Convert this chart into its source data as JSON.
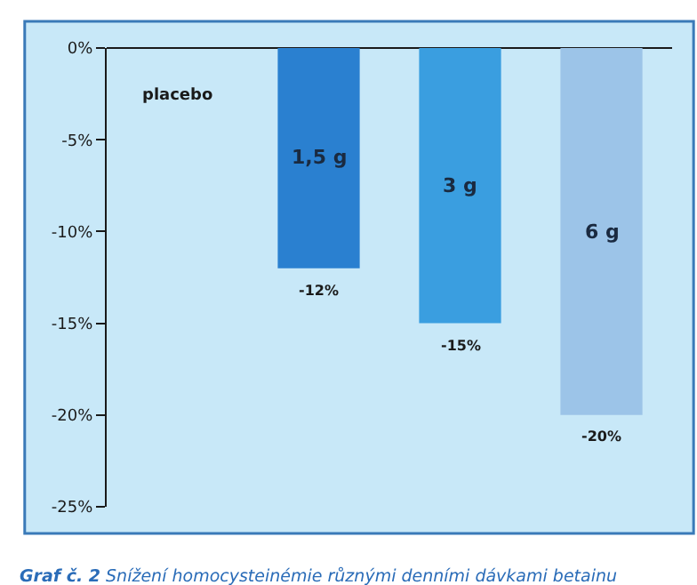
{
  "chart_data": {
    "type": "bar",
    "title": "Graf č. 2",
    "subtitle": "Snížení homocysteinémie různými denními dávkami betainu",
    "categories": [
      "placebo",
      "1,5 g",
      "3 g",
      "6 g"
    ],
    "values": [
      0,
      -12,
      -15,
      -20
    ],
    "colors": [
      "#2a80d0",
      "#2a80d0",
      "#3a9ee0",
      "#9cc4e8"
    ],
    "value_labels": [
      null,
      "-12%",
      "-15%",
      "-20%"
    ],
    "ylim": [
      -25,
      0
    ],
    "yticks": [
      {
        "value": 0,
        "label": "0%"
      },
      {
        "value": -5,
        "label": "-5%"
      },
      {
        "value": -10,
        "label": "-10%"
      },
      {
        "value": -15,
        "label": "-15%"
      },
      {
        "value": -20,
        "label": "-20%"
      },
      {
        "value": -25,
        "label": "-25%"
      }
    ],
    "tick_labels": "y",
    "grid": false,
    "legend": false
  }
}
